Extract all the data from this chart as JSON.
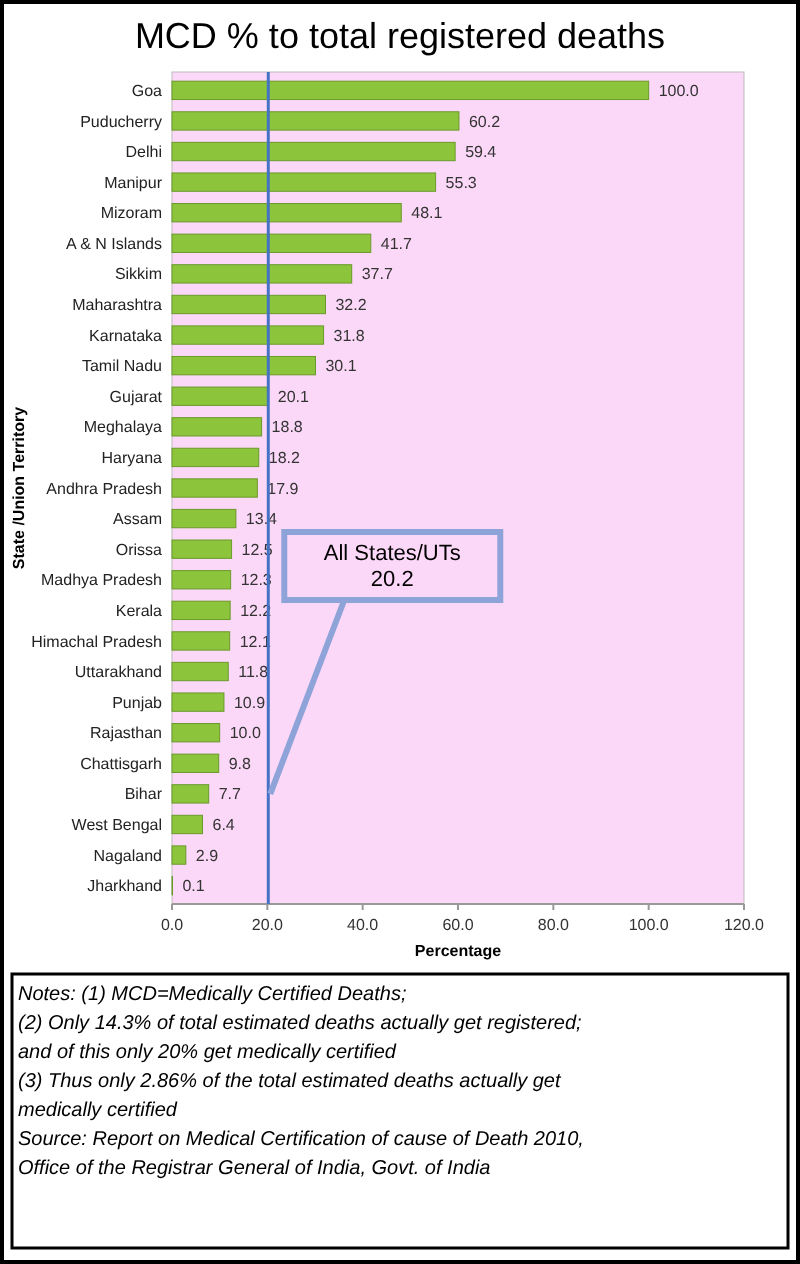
{
  "chart_data": {
    "type": "bar",
    "orientation": "horizontal",
    "title": "MCD % to total registered deaths",
    "xlabel": "Percentage",
    "ylabel": "State /Union Territory",
    "categories": [
      "Goa",
      "Puducherry",
      "Delhi",
      "Manipur",
      "Mizoram",
      "A & N Islands",
      "Sikkim",
      "Maharashtra",
      "Karnataka",
      "Tamil Nadu",
      "Gujarat",
      "Meghalaya",
      "Haryana",
      "Andhra Pradesh",
      "Assam",
      "Orissa",
      "Madhya Pradesh",
      "Kerala",
      "Himachal Pradesh",
      "Uttarakhand",
      "Punjab",
      "Rajasthan",
      "Chattisgarh",
      "Bihar",
      "West Bengal",
      "Nagaland",
      "Jharkhand"
    ],
    "values": [
      100.0,
      60.2,
      59.4,
      55.3,
      48.1,
      41.7,
      37.7,
      32.2,
      31.8,
      30.1,
      20.1,
      18.8,
      18.2,
      17.9,
      13.4,
      12.5,
      12.3,
      12.2,
      12.1,
      11.8,
      10.9,
      10.0,
      9.8,
      7.7,
      6.4,
      2.9,
      0.1
    ],
    "value_labels": [
      "100.0",
      "60.2",
      "59.4",
      "55.3",
      "48.1",
      "41.7",
      "37.7",
      "32.2",
      "31.8",
      "30.1",
      "20.1",
      "18.8",
      "18.2",
      "17.9",
      "13.4",
      "12.5",
      "12.3",
      "12.2",
      "12.1",
      "11.8",
      "10.9",
      "10.0",
      "9.8",
      "7.7",
      "6.4",
      "2.9",
      "0.1"
    ],
    "color": "#8cc43c",
    "xlim": [
      0,
      120
    ],
    "xticks": [
      {
        "value": 0,
        "label": "0.0"
      },
      {
        "value": 20,
        "label": "20.0"
      },
      {
        "value": 40,
        "label": "40.0"
      },
      {
        "value": 60,
        "label": "60.0"
      },
      {
        "value": 80,
        "label": "80.0"
      },
      {
        "value": 100,
        "label": "100.0"
      },
      {
        "value": 120,
        "label": "120.0"
      }
    ],
    "grid": false,
    "ref_lines": [
      {
        "axis": "x",
        "value": 20.2,
        "label": "All States/UTs\n20.2",
        "color": "#4472c4"
      }
    ],
    "annotations": [
      "Notes:  (1) MCD=Medically Certified Deaths;",
      "(2) Only 14.3% of total estimated deaths actually get registered; and of this only 20% get medically certified",
      "(3) Thus only 2.86% of the total estimated deaths actually get medically certified",
      "Source:  Report on Medical Certification of cause of Death 2010, Office of the Registrar General of India, Govt. of India"
    ]
  }
}
